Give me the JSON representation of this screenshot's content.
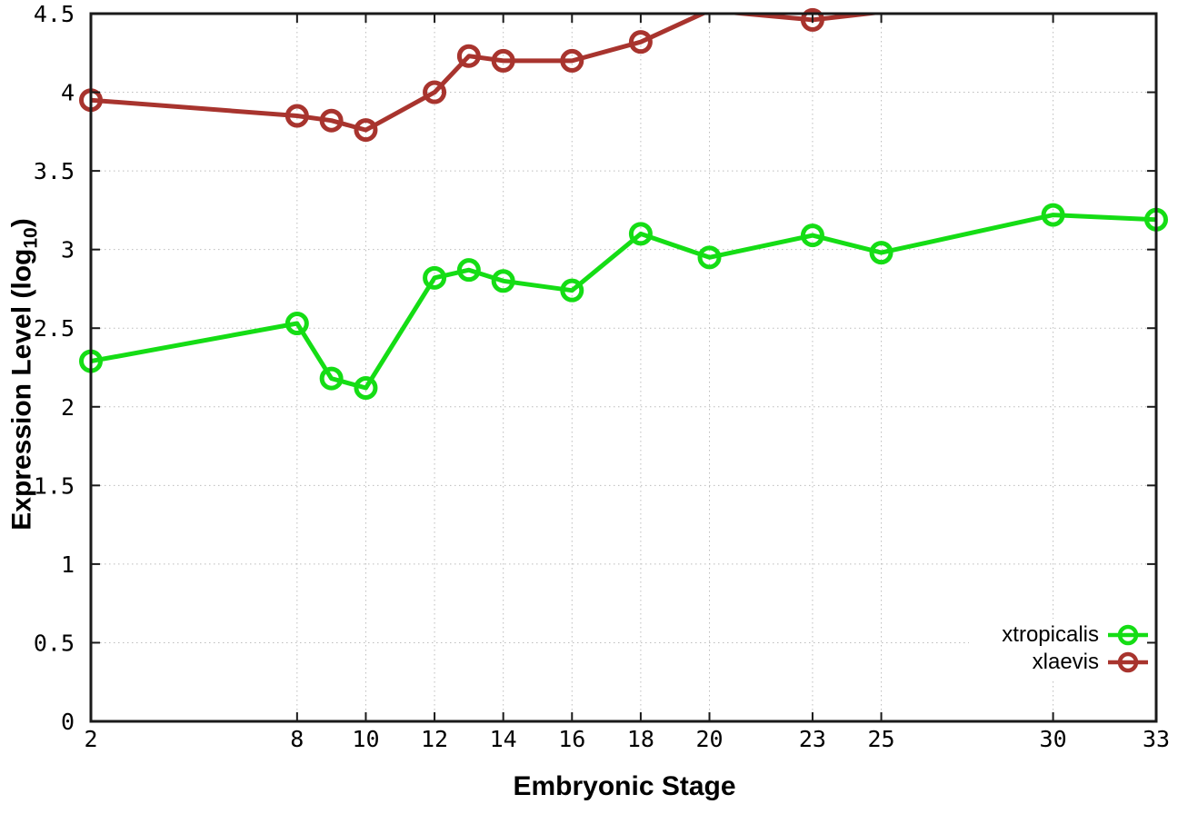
{
  "chart_data": {
    "type": "line",
    "title": "",
    "xlabel": "Embryonic Stage",
    "ylabel": "Expression Level (log10)",
    "ylabel_prefix": "Expression Level (log",
    "ylabel_subscript": "10",
    "ylabel_suffix": ")",
    "xlim": [
      2,
      33
    ],
    "ylim": [
      0,
      4.5
    ],
    "grid": true,
    "legend_position": "bottom-right",
    "x": [
      2,
      8,
      9,
      10,
      12,
      13,
      14,
      16,
      18,
      20,
      23,
      25,
      30,
      33
    ],
    "xtick_values": [
      2,
      8,
      10,
      12,
      14,
      16,
      18,
      20,
      23,
      25,
      30,
      33
    ],
    "xtick_labels": [
      "2",
      "8",
      "10",
      "12",
      "14",
      "16",
      "18",
      "20",
      "23",
      "25",
      "30",
      "33"
    ],
    "ytick_values": [
      0,
      0.5,
      1,
      1.5,
      2,
      2.5,
      3,
      3.5,
      4,
      4.5
    ],
    "ytick_labels": [
      "0",
      "0.5",
      "1",
      "1.5",
      "2",
      "2.5",
      "3",
      "3.5",
      "4",
      "4.5"
    ],
    "series": [
      {
        "name": "xtropicalis",
        "color": "#15dd15",
        "values": [
          2.29,
          2.53,
          2.18,
          2.12,
          2.82,
          2.87,
          2.8,
          2.74,
          3.1,
          2.95,
          3.09,
          2.98,
          3.22,
          3.19
        ]
      },
      {
        "name": "xlaevis",
        "color": "#a8342e",
        "values": [
          3.95,
          3.85,
          3.82,
          3.76,
          4.0,
          4.23,
          4.2,
          4.2,
          4.32,
          4.52,
          4.46,
          4.51,
          null,
          null
        ]
      }
    ],
    "colors": {
      "grid": "#bcbcbc",
      "axis": "#1a1a1a",
      "background": "#ffffff"
    }
  }
}
